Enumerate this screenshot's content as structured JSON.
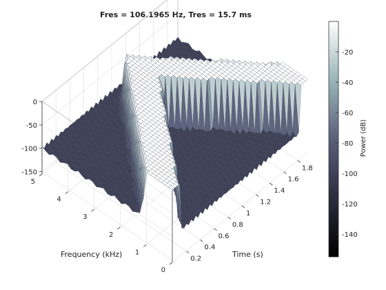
{
  "chart_data": {
    "type": "surface",
    "title": "Fres = 106.1965 Hz, Tres = 15.7 ms",
    "xlabel": "Time (s)",
    "ylabel": "Frequency (kHz)",
    "zlabel": "",
    "colorbar_label": "Power (dB)",
    "xlim": [
      0,
      1.95
    ],
    "ylim": [
      0,
      5
    ],
    "zlim": [
      -155,
      0
    ],
    "clim": [
      -155,
      0
    ],
    "x_ticks": [
      "0.2",
      "0.4",
      "0.6",
      "0.8",
      "1",
      "1.2",
      "1.4",
      "1.6",
      "1.8"
    ],
    "x_tick_values": [
      0.2,
      0.4,
      0.6,
      0.8,
      1.0,
      1.2,
      1.4,
      1.6,
      1.8
    ],
    "y_ticks": [
      "0",
      "1",
      "2",
      "3",
      "4",
      "5"
    ],
    "y_tick_values": [
      0,
      1,
      2,
      3,
      4,
      5
    ],
    "z_ticks": [
      "-150",
      "-100",
      "-50",
      "0"
    ],
    "z_tick_values": [
      -150,
      -100,
      -50,
      0
    ],
    "colorbar_ticks": [
      "-20",
      "-40",
      "-60",
      "-80",
      "-100",
      "-120",
      "-140"
    ],
    "colorbar_tick_values": [
      -20,
      -40,
      -60,
      -80,
      -100,
      -120,
      -140
    ],
    "noise_floor_db": -100,
    "peak_db": 0,
    "series": [
      {
        "x": [
          0.0,
          1.0
        ],
        "y": [
          1.0,
          4.5
        ],
        "peak_db": 0
      },
      {
        "x": [
          1.0,
          1.95
        ],
        "y": [
          4.5,
          1.0
        ],
        "peak_db": 0
      }
    ],
    "grid": true,
    "colormap": "bone"
  }
}
